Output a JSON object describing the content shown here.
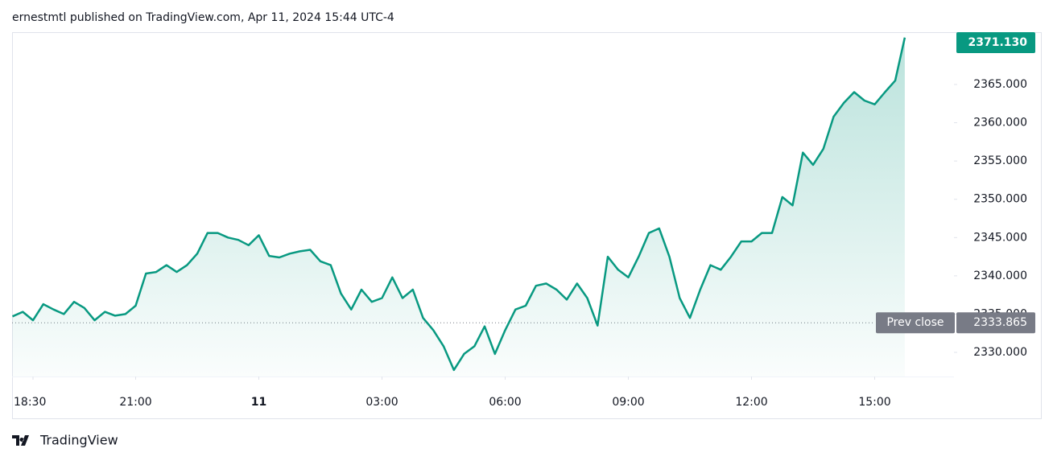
{
  "header": "ernestmtl published on TradingView.com, Apr 11, 2024 15:44 UTC-4",
  "footer": "TradingView",
  "chart_data": {
    "type": "area",
    "color": "#089981",
    "x": [
      "18:00",
      "18:15",
      "18:30",
      "18:45",
      "19:00",
      "19:15",
      "19:30",
      "19:45",
      "20:00",
      "20:15",
      "20:30",
      "20:45",
      "21:00",
      "21:15",
      "21:30",
      "21:45",
      "22:00",
      "22:15",
      "22:30",
      "22:45",
      "23:00",
      "23:15",
      "23:30",
      "23:45",
      "00:00",
      "00:15",
      "00:30",
      "00:45",
      "01:00",
      "01:15",
      "01:30",
      "01:45",
      "02:00",
      "02:15",
      "02:30",
      "02:45",
      "03:00",
      "03:15",
      "03:30",
      "03:45",
      "04:00",
      "04:15",
      "04:30",
      "04:45",
      "05:00",
      "05:15",
      "05:30",
      "05:45",
      "06:00",
      "06:15",
      "06:30",
      "06:45",
      "07:00",
      "07:15",
      "07:30",
      "07:45",
      "08:00",
      "08:15",
      "08:30",
      "08:45",
      "09:00",
      "09:15",
      "09:30",
      "09:45",
      "10:00",
      "10:15",
      "10:30",
      "10:45",
      "11:00",
      "11:15",
      "11:30",
      "11:45",
      "12:00",
      "12:15",
      "12:30",
      "12:45",
      "13:00",
      "13:15",
      "13:30",
      "13:45",
      "14:00",
      "14:15",
      "14:30",
      "14:45",
      "15:00",
      "15:15",
      "15:30",
      "15:44"
    ],
    "values": [
      2334.7,
      2335.3,
      2334.2,
      2336.3,
      2335.6,
      2335.0,
      2336.6,
      2335.8,
      2334.2,
      2335.3,
      2334.8,
      2335.0,
      2336.1,
      2340.3,
      2340.5,
      2341.4,
      2340.5,
      2341.4,
      2342.9,
      2345.6,
      2345.6,
      2345.0,
      2344.7,
      2344.0,
      2345.3,
      2342.6,
      2342.4,
      2342.9,
      2343.2,
      2343.4,
      2341.9,
      2341.4,
      2337.7,
      2335.6,
      2338.2,
      2336.6,
      2337.1,
      2339.8,
      2337.1,
      2338.2,
      2334.5,
      2332.9,
      2330.8,
      2327.7,
      2329.8,
      2330.8,
      2333.4,
      2329.8,
      2332.9,
      2335.6,
      2336.1,
      2338.7,
      2339.0,
      2338.2,
      2336.9,
      2339.0,
      2337.1,
      2333.5,
      2342.5,
      2340.8,
      2339.8,
      2342.5,
      2345.6,
      2346.2,
      2342.5,
      2337.1,
      2334.5,
      2338.2,
      2341.4,
      2340.8,
      2342.5,
      2344.5,
      2344.5,
      2345.6,
      2345.6,
      2350.3,
      2349.2,
      2356.1,
      2354.5,
      2356.6,
      2360.8,
      2362.6,
      2364.0,
      2362.9,
      2362.4,
      2364.0,
      2365.5,
      2371.13
    ],
    "last_label": "2371.130",
    "prev_close": {
      "value": 2333.865,
      "label": "2333.865",
      "name": "Prev close"
    },
    "ylim": [
      2326.85,
      2371.83
    ],
    "yticks": [
      {
        "value": 2330,
        "label": "2330.000"
      },
      {
        "value": 2335,
        "label": "2335.000"
      },
      {
        "value": 2340,
        "label": "2340.000"
      },
      {
        "value": 2345,
        "label": "2345.000"
      },
      {
        "value": 2350,
        "label": "2350.000"
      },
      {
        "value": 2355,
        "label": "2355.000"
      },
      {
        "value": 2360,
        "label": "2360.000"
      },
      {
        "value": 2365,
        "label": "2365.000"
      }
    ],
    "xticks": [
      "18:30",
      "21:00",
      {
        "value": "00:00",
        "label": "11"
      },
      "03:00",
      "06:00",
      "09:00",
      "12:00",
      "15:00"
    ]
  }
}
